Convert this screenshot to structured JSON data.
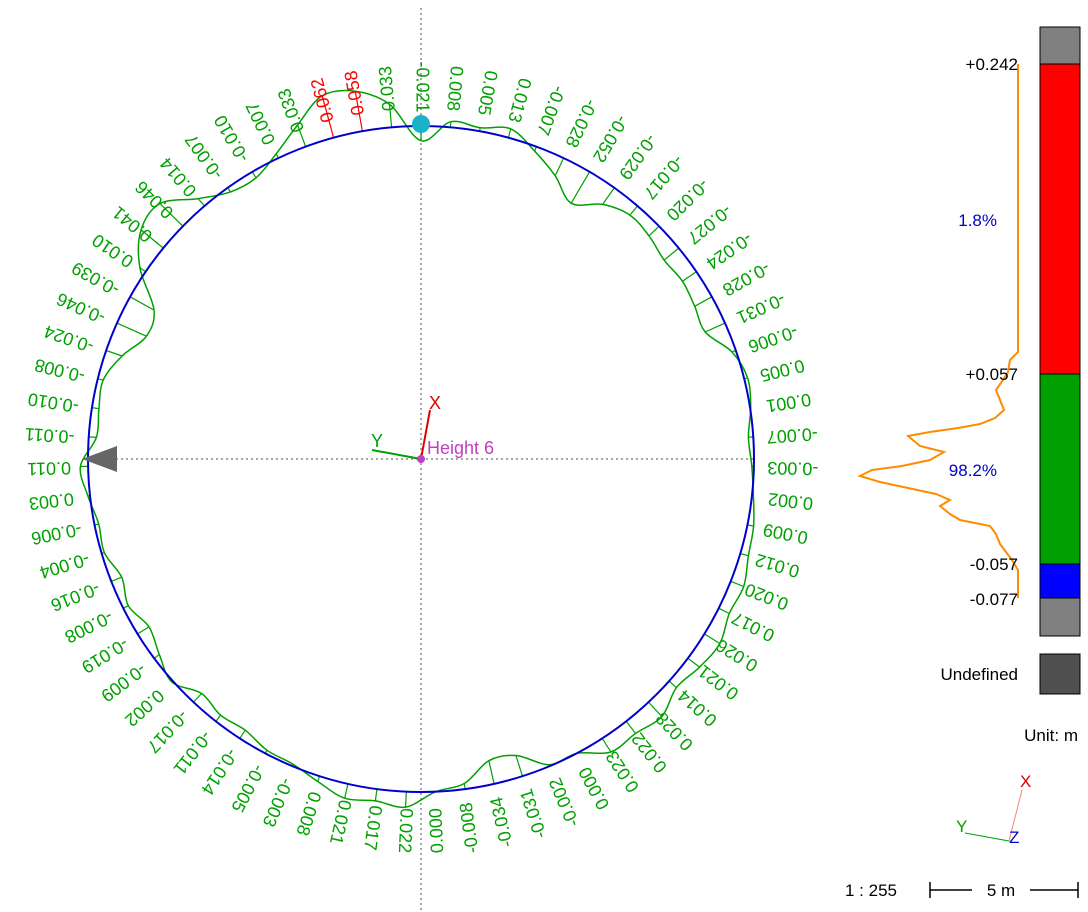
{
  "section": {
    "label": "Height 6",
    "axis_x_label": "X",
    "axis_y_label": "Y"
  },
  "deviation_labels": [
    "-0.021",
    "0.008",
    "0.005",
    "0.013",
    "-0.007",
    "-0.028",
    "-0.052",
    "-0.029",
    "-0.017",
    "-0.020",
    "-0.027",
    "-0.024",
    "-0.028",
    "-0.031",
    "-0.006",
    "0.005",
    "0.001",
    "-0.007",
    "-0.003",
    "0.002",
    "0.009",
    "0.012",
    "0.020",
    "0.017",
    "0.026",
    "0.021",
    "0.014",
    "0.028",
    "0.022",
    "0.023",
    "0.000",
    "-0.002",
    "-0.031",
    "-0.034",
    "-0.008",
    "0.000",
    "0.022",
    "0.017",
    "0.021",
    "0.008",
    "-0.003",
    "-0.005",
    "-0.014",
    "-0.011",
    "-0.017",
    "0.002",
    "-0.009",
    "-0.019",
    "-0.008",
    "-0.016",
    "-0.004",
    "-0.006",
    "0.003",
    "0.011",
    "-0.011",
    "-0.010",
    "-0.008",
    "-0.024",
    "-0.046",
    "-0.039",
    "0.010",
    "0.041",
    "0.046",
    "0.014",
    "-0.007",
    "-0.010",
    "0.007",
    "0.033",
    "0.062",
    "0.058",
    "0.033"
  ],
  "legend": {
    "top_value": "+0.242",
    "upper_limit": "+0.057",
    "lower_limit": "-0.057",
    "bottom_value": "-0.077",
    "above_percent": "1.8%",
    "within_percent": "98.2%",
    "undefined_label": "Undefined",
    "unit_label": "Unit: m",
    "colors": {
      "above": "#ff0000",
      "within": "#00a000",
      "below": "#0000ff",
      "out_of_range": "#808080",
      "undefined": "#505050",
      "histogram": "#ff8c00"
    }
  },
  "orientation": {
    "x": "X",
    "y": "Y",
    "z": "Z"
  },
  "scale": {
    "ratio": "1 : 255",
    "bar_label": "5 m"
  }
}
